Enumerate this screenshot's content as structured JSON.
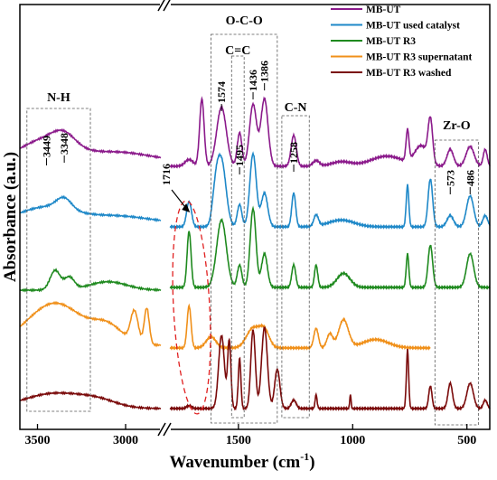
{
  "chart_data": {
    "type": "line",
    "xlabel": "Wavenumber (cm",
    "xlabel_sup": "-1",
    "xlabel_close": ")",
    "ylabel": "Absorbance (a.u.)",
    "x_ticks": [
      "3500",
      "3000",
      "1500",
      "1000",
      "500"
    ],
    "x_tick_values": [
      3500,
      3000,
      1500,
      1000,
      500
    ],
    "x_segments": [
      [
        3600,
        2800
      ],
      [
        1800,
        400
      ]
    ],
    "legend_position": "top-right",
    "series": [
      {
        "name": "MB-UT",
        "color": "#8b1a8b",
        "offset": 4.0
      },
      {
        "name": "MB-UT used catalyst",
        "color": "#1e88c8",
        "offset": 3.0
      },
      {
        "name": "MB-UT R3",
        "color": "#1f8a1f",
        "offset": 2.0
      },
      {
        "name": "MB-UT R3 supernatant",
        "color": "#f0901a",
        "offset": 1.0
      },
      {
        "name": "MB-UT R3 washed",
        "color": "#7a0a0a",
        "offset": 0.0
      }
    ],
    "peak_labels": [
      {
        "text": "3449",
        "x": 3449
      },
      {
        "text": "3348",
        "x": 3348
      },
      {
        "text": "1574",
        "x": 1574
      },
      {
        "text": "1495",
        "x": 1495
      },
      {
        "text": "1436",
        "x": 1436
      },
      {
        "text": "1386",
        "x": 1386
      },
      {
        "text": "1258",
        "x": 1258
      },
      {
        "text": "573",
        "x": 573
      },
      {
        "text": "486",
        "x": 486
      }
    ],
    "arrow_label": {
      "text": "1716",
      "x": 1716
    },
    "group_labels": [
      {
        "text": "N-H",
        "x_from": 3560,
        "x_to": 3200
      },
      {
        "text": "O-C-O",
        "x_from": 1620,
        "x_to": 1330
      },
      {
        "text": "C=C",
        "x_from": 1530,
        "x_to": 1475
      },
      {
        "text": "C-N",
        "x_from": 1310,
        "x_to": 1190
      },
      {
        "text": "Zr-O",
        "x_from": 640,
        "x_to": 450
      }
    ]
  }
}
